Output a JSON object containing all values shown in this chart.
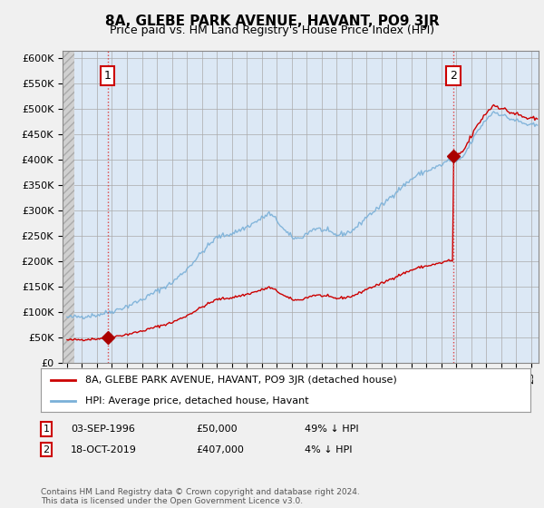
{
  "title": "8A, GLEBE PARK AVENUE, HAVANT, PO9 3JR",
  "subtitle": "Price paid vs. HM Land Registry's House Price Index (HPI)",
  "title_fontsize": 11,
  "subtitle_fontsize": 9,
  "ylabel_ticks": [
    "£0",
    "£50K",
    "£100K",
    "£150K",
    "£200K",
    "£250K",
    "£300K",
    "£350K",
    "£400K",
    "£450K",
    "£500K",
    "£550K",
    "£600K"
  ],
  "ytick_vals": [
    0,
    50000,
    100000,
    150000,
    200000,
    250000,
    300000,
    350000,
    400000,
    450000,
    500000,
    550000,
    600000
  ],
  "ylim": [
    0,
    615000
  ],
  "xlim_start": 1993.7,
  "xlim_end": 2025.5,
  "grid_color": "#aaaaaa",
  "bg_color": "#f0f0f0",
  "plot_bg_color": "#dce8f5",
  "hatch_bg_color": "#d8d8d8",
  "hpi_color": "#7ab0d8",
  "price_color": "#cc0000",
  "marker_color": "#aa0000",
  "sale1_year": 1996.7,
  "sale1_price": 50000,
  "sale2_year": 2019.8,
  "sale2_price": 407000,
  "annotation1_label": "1",
  "annotation2_label": "2",
  "legend_label_red": "8A, GLEBE PARK AVENUE, HAVANT, PO9 3JR (detached house)",
  "legend_label_blue": "HPI: Average price, detached house, Havant",
  "copyright_text": "Contains HM Land Registry data © Crown copyright and database right 2024.\nThis data is licensed under the Open Government Licence v3.0."
}
